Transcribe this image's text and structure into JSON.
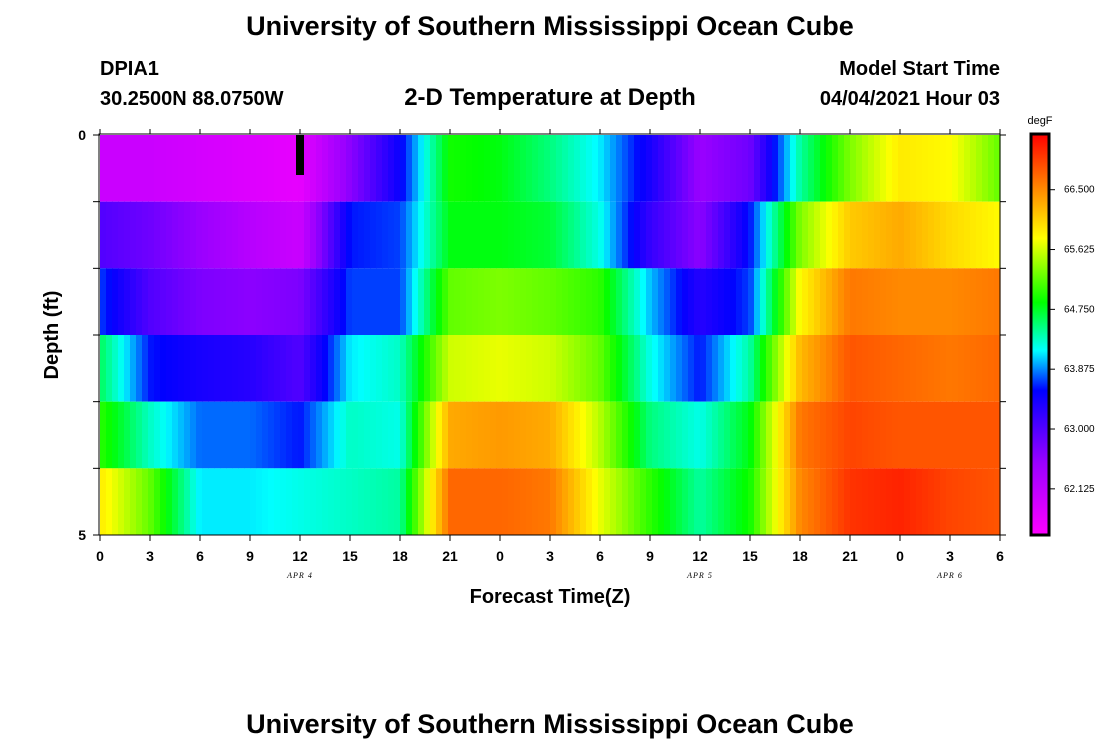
{
  "header": {
    "title": "University of Southern Mississippi Ocean Cube",
    "station": "DPIA1",
    "location": "30.2500N  88.0750W",
    "plot_title": "2-D Temperature at Depth",
    "model_start_label": "Model Start Time",
    "model_start_value": "04/04/2021 Hour 03"
  },
  "footer": {
    "title": "University of Southern Mississippi Ocean Cube"
  },
  "chart_data": {
    "type": "heatmap",
    "title": "2-D Temperature at Depth",
    "xlabel": "Forecast Time(Z)",
    "ylabel": "Depth (ft)",
    "x_tick_labels": [
      "0",
      "3",
      "6",
      "9",
      "12",
      "15",
      "18",
      "21",
      "0",
      "3",
      "6",
      "9",
      "12",
      "15",
      "18",
      "21",
      "0",
      "3",
      "6"
    ],
    "date_labels": [
      {
        "text": "APR 4",
        "tick_index": 4
      },
      {
        "text": "APR 5",
        "tick_index": 12
      },
      {
        "text": "APR 6",
        "tick_index": 17
      }
    ],
    "y_tick_labels": [
      "0",
      "5"
    ],
    "ylim": [
      0,
      5
    ],
    "colorbar": {
      "unit": "degF",
      "labels": [
        "66.500",
        "65.625",
        "64.750",
        "63.875",
        "63.000",
        "62.125"
      ],
      "min": 61.45,
      "max": 67.3
    },
    "depth_layers": [
      0,
      1,
      2,
      3,
      4,
      5
    ],
    "sample_hours": [
      0,
      3,
      6,
      9,
      12,
      15,
      18,
      21,
      24,
      27,
      30,
      33,
      36,
      39,
      42,
      45,
      48,
      51,
      54
    ],
    "temperature_degF": [
      [
        62.0,
        62.0,
        61.9,
        61.8,
        61.7,
        62.6,
        63.5,
        64.9,
        64.8,
        64.5,
        64.1,
        63.4,
        62.5,
        62.8,
        64.4,
        65.3,
        65.9,
        65.8,
        65.2
      ],
      [
        63.0,
        62.8,
        62.5,
        62.2,
        62.0,
        63.6,
        63.7,
        64.8,
        64.8,
        64.7,
        64.2,
        63.2,
        62.6,
        63.6,
        65.3,
        66.1,
        66.3,
        66.0,
        65.8
      ],
      [
        63.7,
        63.0,
        62.7,
        62.6,
        62.7,
        63.7,
        63.7,
        65.2,
        65.3,
        65.2,
        65.0,
        64.0,
        63.3,
        63.7,
        65.8,
        66.6,
        66.5,
        66.5,
        66.6
      ],
      [
        64.6,
        63.6,
        63.4,
        63.3,
        63.0,
        64.1,
        64.3,
        65.6,
        65.7,
        65.6,
        65.2,
        64.2,
        63.6,
        64.4,
        66.2,
        66.8,
        66.7,
        66.6,
        66.7
      ],
      [
        65.0,
        64.3,
        63.8,
        63.8,
        63.6,
        64.3,
        64.2,
        66.3,
        66.4,
        66.3,
        65.5,
        64.5,
        64.2,
        64.8,
        66.6,
        66.9,
        66.8,
        66.8,
        66.8
      ],
      [
        65.9,
        65.2,
        64.1,
        64.1,
        64.2,
        64.3,
        64.4,
        66.7,
        66.7,
        66.6,
        65.7,
        65.0,
        64.4,
        64.9,
        66.5,
        67.0,
        67.1,
        66.9,
        66.8
      ]
    ],
    "grid": false,
    "legend": "right colorbar"
  }
}
